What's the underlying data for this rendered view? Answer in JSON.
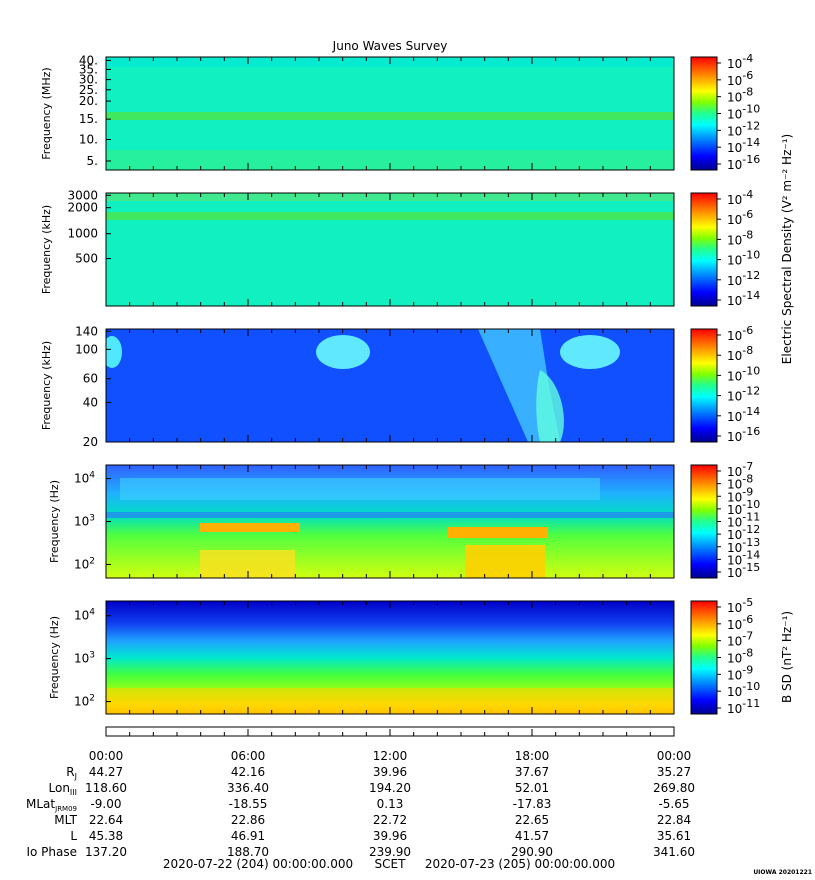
{
  "title": "Juno Waves Survey",
  "credit": "UIOWA 20201221",
  "panels": [
    {
      "ylabel": "Frequency (MHz)",
      "ticks": [
        "40.",
        "35.",
        "30.",
        "25.",
        "20.",
        "15.",
        "10.",
        "5."
      ],
      "colorbar_ticks": [
        "-4",
        "-6",
        "-8",
        "-10",
        "-12",
        "-14",
        "-16"
      ],
      "colorbar_base": "10",
      "colorbar_range": [
        -16,
        -4
      ]
    },
    {
      "ylabel": "Frequency (kHz)",
      "ticks": [
        "3000",
        "2000",
        "1000",
        "500"
      ],
      "colorbar_ticks": [
        "-4",
        "-6",
        "-8",
        "-10",
        "-12",
        "-14"
      ],
      "colorbar_base": "10",
      "colorbar_range": [
        -14,
        -4
      ]
    },
    {
      "ylabel": "Frequency (kHz)",
      "ticks": [
        "140",
        "100",
        "60",
        "40",
        "20"
      ],
      "colorbar_ticks": [
        "-6",
        "-8",
        "-10",
        "-12",
        "-14",
        "-16"
      ],
      "colorbar_base": "10",
      "colorbar_range": [
        -16,
        -6
      ]
    },
    {
      "ylabel": "Frequency (Hz)",
      "ticks": [
        "4",
        "3",
        "2"
      ],
      "tick_base": "10",
      "colorbar_ticks": [
        "-7",
        "-8",
        "-9",
        "-10",
        "-11",
        "-12",
        "-13",
        "-14",
        "-15"
      ],
      "colorbar_base": "10",
      "colorbar_range": [
        -15,
        -7
      ]
    },
    {
      "ylabel": "Frequency (Hz)",
      "ticks": [
        "4",
        "3",
        "2"
      ],
      "tick_base": "10",
      "colorbar_ticks": [
        "-5",
        "-6",
        "-7",
        "-8",
        "-9",
        "-10",
        "-11"
      ],
      "colorbar_base": "10",
      "colorbar_range": [
        -11,
        -5
      ]
    }
  ],
  "colorbar_label_electric": "Electric Spectral Density (V² m⁻² Hz⁻¹)",
  "colorbar_label_magnetic": "B SD (nT² Hz⁻¹)",
  "time_ticks": [
    "00:00",
    "06:00",
    "12:00",
    "18:00",
    "00:00"
  ],
  "ephemeris": {
    "labels": [
      "R_J",
      "Lon_III",
      "MLat_JRM09",
      "MLT",
      "L",
      "Io Phase"
    ],
    "rows": [
      [
        "44.27",
        "42.16",
        "39.96",
        "37.67",
        "35.27"
      ],
      [
        "118.60",
        "336.40",
        "194.20",
        "52.01",
        "269.80"
      ],
      [
        "-9.00",
        "-18.55",
        "0.13",
        "-17.83",
        "-5.65"
      ],
      [
        "22.64",
        "22.86",
        "22.72",
        "22.65",
        "22.84"
      ],
      [
        "45.38",
        "46.91",
        "39.96",
        "41.57",
        "35.61"
      ],
      [
        "137.20",
        "188.70",
        "239.90",
        "290.90",
        "341.60"
      ]
    ]
  },
  "scet": {
    "start": "2020-07-22 (204) 00:00:00.000",
    "label": "SCET",
    "end": "2020-07-23 (205) 00:00:00.000"
  },
  "chart_data": {
    "type": "heatmap",
    "title": "Juno Waves Survey",
    "x_range": [
      "2020-07-22 00:00",
      "2020-07-23 00:00"
    ],
    "panels": [
      {
        "ylabel": "Frequency (MHz)",
        "ylim": [
          5,
          40
        ],
        "zlim_log10": [
          -16,
          -4
        ],
        "z_unit": "V² m⁻² Hz⁻¹"
      },
      {
        "ylabel": "Frequency (kHz)",
        "ylim": [
          150,
          3000
        ],
        "zlim_log10": [
          -14,
          -4
        ],
        "z_unit": "V² m⁻² Hz⁻¹"
      },
      {
        "ylabel": "Frequency (kHz)",
        "ylim": [
          20,
          140
        ],
        "zlim_log10": [
          -16,
          -6
        ],
        "z_unit": "V² m⁻² Hz⁻¹"
      },
      {
        "ylabel": "Frequency (Hz)",
        "ylim": [
          50,
          20000
        ],
        "yscale": "log",
        "zlim_log10": [
          -15,
          -7
        ],
        "z_unit": "V² m⁻² Hz⁻¹"
      },
      {
        "ylabel": "Frequency (Hz)",
        "ylim": [
          50,
          20000
        ],
        "yscale": "log",
        "zlim_log10": [
          -11,
          -5
        ],
        "z_unit": "nT² Hz⁻¹"
      }
    ]
  }
}
